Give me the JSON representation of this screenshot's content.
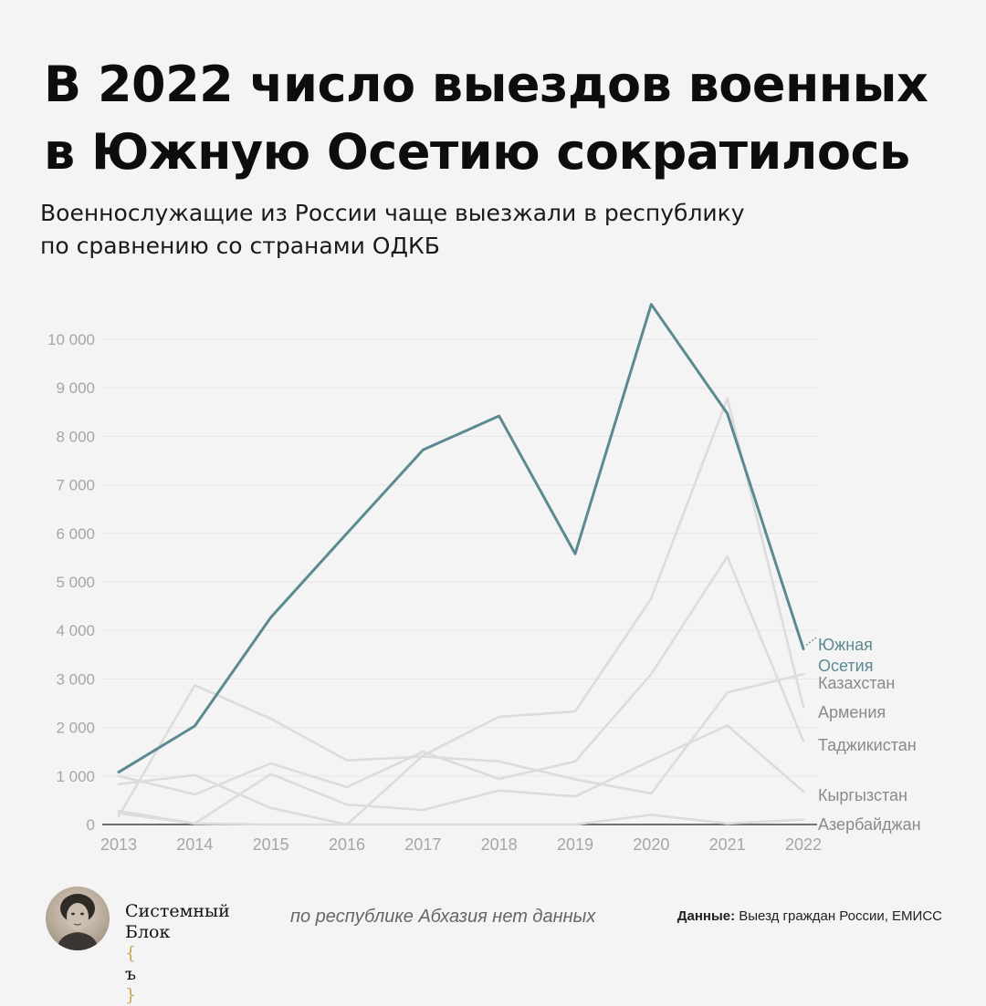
{
  "header": {
    "title_line1": "В 2022 число выездов военных",
    "title_line2": "в Южную Осетию сократилось",
    "subtitle_line1": "Военнослужащие из России чаще выезжали в республику",
    "subtitle_line2": "по сравнению со странами ОДКБ"
  },
  "chart_data": {
    "type": "line",
    "title": "В 2022 число выездов военных в Южную Осетию сократилось",
    "subtitle": "Военнослужащие из России чаще выезжали в республику по сравнению со странами ОДКБ",
    "x": [
      2013,
      2014,
      2015,
      2016,
      2017,
      2018,
      2019,
      2020,
      2021,
      2022
    ],
    "x_tick_labels": [
      "2013",
      "2014",
      "2015",
      "2016",
      "2017",
      "2018",
      "2019",
      "2020",
      "2021",
      "2022"
    ],
    "ylim": [
      0,
      10000
    ],
    "y_ticks": [
      0,
      1000,
      2000,
      3000,
      4000,
      5000,
      6000,
      7000,
      8000,
      9000,
      10000
    ],
    "y_tick_labels": [
      "0",
      "1 000",
      "2 000",
      "3 000",
      "4 000",
      "5 000",
      "6 000",
      "7 000",
      "8 000",
      "9 000",
      "10 000"
    ],
    "grid": true,
    "legend": "direct labels at right end of lines",
    "series": [
      {
        "name": "Южная Осетия",
        "label_lines": [
          "Южная",
          "Осетия"
        ],
        "highlight": true,
        "color": "#5b8a90",
        "values": [
          1080,
          2030,
          4270,
          6000,
          7720,
          8420,
          5580,
          10720,
          8470,
          3620
        ]
      },
      {
        "name": "Казахстан",
        "label_lines": [
          "Казахстан"
        ],
        "color": "#dcdcdc",
        "values": [
          830,
          1020,
          340,
          0,
          1420,
          2220,
          2330,
          4660,
          8780,
          2420
        ]
      },
      {
        "name": "Армения",
        "label_lines": [
          "Армения"
        ],
        "color": "#dcdcdc",
        "values": [
          1000,
          620,
          1260,
          770,
          1500,
          940,
          1300,
          3100,
          5520,
          1720
        ]
      },
      {
        "name": "Таджикистан",
        "label_lines": [
          "Таджикистан"
        ],
        "color": "#dcdcdc",
        "values": [
          170,
          2870,
          2180,
          1320,
          1400,
          1300,
          930,
          640,
          2720,
          3100
        ]
      },
      {
        "name": "Кыргызстан",
        "label_lines": [
          "Кыргызстан"
        ],
        "color": "#dcdcdc",
        "values": [
          280,
          20,
          1040,
          410,
          300,
          700,
          580,
          1320,
          2040,
          680
        ]
      },
      {
        "name": "Азербайджан",
        "label_lines": [
          "Азербайджан"
        ],
        "color": "#dcdcdc",
        "values": [
          230,
          20,
          0,
          0,
          0,
          0,
          0,
          200,
          20,
          100
        ]
      }
    ]
  },
  "colors": {
    "highlight": "#5b8a90",
    "other_lines": "#dcdcdc",
    "axis_labels": "#a6a6a6",
    "series_labels": "#8a8a8a",
    "grid": "#e6e6e6",
    "background": "#f4f4f4"
  },
  "footer": {
    "brand_line1": "Системный",
    "brand_line2": "Блок",
    "brand_mark": "ъ",
    "note": "по республике Абхазия нет данных",
    "source_label": "Данные:",
    "source_text": "Выезд граждан России, ЕМИСС"
  }
}
